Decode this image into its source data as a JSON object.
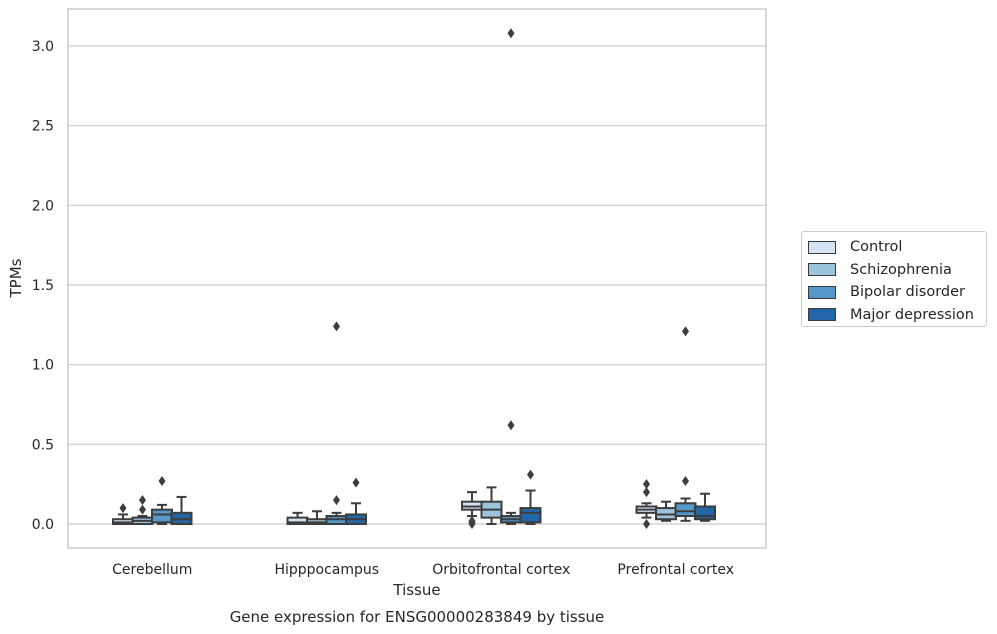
{
  "chart_data": {
    "type": "box",
    "title": "",
    "caption": "Gene expression for ENSG00000283849 by tissue",
    "xlabel": "Tissue",
    "ylabel": "TPMs",
    "ylim": [
      -0.15,
      3.25
    ],
    "yticks": [
      "0.0",
      "0.5",
      "1.0",
      "1.5",
      "2.0",
      "2.5",
      "3.0"
    ],
    "grid": "horizontal",
    "legend_position": "right",
    "categories": [
      "Cerebellum",
      "Hipppocampus",
      "Orbitofrontal cortex",
      "Prefrontal cortex"
    ],
    "series": [
      {
        "name": "Control",
        "color": "#d4e4f4",
        "boxes": [
          {
            "q1": 0.0,
            "median": 0.01,
            "q3": 0.03,
            "whislo": 0.0,
            "whishi": 0.06,
            "fliers": [
              0.1
            ]
          },
          {
            "q1": 0.0,
            "median": 0.01,
            "q3": 0.04,
            "whislo": 0.0,
            "whishi": 0.07,
            "fliers": []
          },
          {
            "q1": 0.09,
            "median": 0.11,
            "q3": 0.14,
            "whislo": 0.05,
            "whishi": 0.2,
            "fliers": [
              0.0,
              0.01,
              0.02
            ]
          },
          {
            "q1": 0.07,
            "median": 0.09,
            "q3": 0.11,
            "whislo": 0.04,
            "whishi": 0.13,
            "fliers": [
              0.0,
              0.2,
              0.25
            ]
          }
        ]
      },
      {
        "name": "Schizophrenia",
        "color": "#9cc3de",
        "boxes": [
          {
            "q1": 0.0,
            "median": 0.02,
            "q3": 0.04,
            "whislo": 0.0,
            "whishi": 0.05,
            "fliers": [
              0.09,
              0.15
            ]
          },
          {
            "q1": 0.0,
            "median": 0.01,
            "q3": 0.03,
            "whislo": 0.0,
            "whishi": 0.08,
            "fliers": []
          },
          {
            "q1": 0.04,
            "median": 0.09,
            "q3": 0.14,
            "whislo": 0.0,
            "whishi": 0.23,
            "fliers": []
          },
          {
            "q1": 0.03,
            "median": 0.06,
            "q3": 0.1,
            "whislo": 0.02,
            "whishi": 0.14,
            "fliers": []
          }
        ]
      },
      {
        "name": "Bipolar disorder",
        "color": "#5597c7",
        "boxes": [
          {
            "q1": 0.01,
            "median": 0.06,
            "q3": 0.09,
            "whislo": 0.0,
            "whishi": 0.12,
            "fliers": [
              0.27
            ]
          },
          {
            "q1": 0.0,
            "median": 0.03,
            "q3": 0.05,
            "whislo": 0.0,
            "whishi": 0.07,
            "fliers": [
              0.15,
              1.24
            ]
          },
          {
            "q1": 0.01,
            "median": 0.03,
            "q3": 0.05,
            "whislo": 0.0,
            "whishi": 0.07,
            "fliers": [
              0.62,
              3.08
            ]
          },
          {
            "q1": 0.05,
            "median": 0.08,
            "q3": 0.13,
            "whislo": 0.02,
            "whishi": 0.16,
            "fliers": [
              0.27,
              1.21
            ]
          }
        ]
      },
      {
        "name": "Major depression",
        "color": "#2366a8",
        "boxes": [
          {
            "q1": 0.0,
            "median": 0.03,
            "q3": 0.07,
            "whislo": 0.0,
            "whishi": 0.17,
            "fliers": []
          },
          {
            "q1": 0.0,
            "median": 0.03,
            "q3": 0.06,
            "whislo": 0.0,
            "whishi": 0.13,
            "fliers": [
              0.26
            ]
          },
          {
            "q1": 0.01,
            "median": 0.07,
            "q3": 0.1,
            "whislo": 0.0,
            "whishi": 0.21,
            "fliers": [
              0.31
            ]
          },
          {
            "q1": 0.03,
            "median": 0.05,
            "q3": 0.11,
            "whislo": 0.02,
            "whishi": 0.19,
            "fliers": []
          }
        ]
      }
    ]
  }
}
